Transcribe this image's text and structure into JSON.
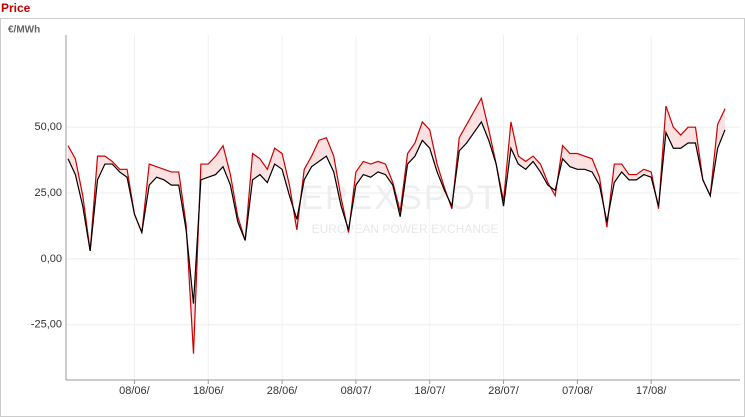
{
  "chart_data": {
    "type": "line",
    "title": "Price",
    "y_label": "€/MWh",
    "watermark": {
      "logo": "EPEXSPOT",
      "tagline": "EUROPEAN POWER EXCHANGE"
    },
    "categories": [
      null,
      null,
      null,
      null,
      null,
      null,
      null,
      null,
      null,
      "08/06/",
      null,
      null,
      null,
      null,
      null,
      null,
      null,
      null,
      null,
      "18/06/",
      null,
      null,
      null,
      null,
      null,
      null,
      null,
      null,
      null,
      "28/06/",
      null,
      null,
      null,
      null,
      null,
      null,
      null,
      null,
      null,
      "08/07/",
      null,
      null,
      null,
      null,
      null,
      null,
      null,
      null,
      null,
      "18/07/",
      null,
      null,
      null,
      null,
      null,
      null,
      null,
      null,
      null,
      "28/07/",
      null,
      null,
      null,
      null,
      null,
      null,
      null,
      null,
      null,
      "07/08/",
      null,
      null,
      null,
      null,
      null,
      null,
      null,
      null,
      null,
      "17/08/",
      null,
      null,
      null,
      null,
      null,
      null,
      null,
      null,
      null,
      null
    ],
    "series": [
      {
        "color": "#cc0000",
        "values": [
          43,
          38,
          24,
          3,
          39,
          39,
          37,
          34,
          34,
          17,
          10,
          36,
          35,
          34,
          33,
          33,
          13,
          -36,
          36,
          36,
          39,
          43,
          32,
          16,
          7,
          40,
          38,
          34,
          42,
          40,
          28,
          11,
          34,
          39,
          45,
          46,
          39,
          23,
          10,
          33,
          37,
          36,
          37,
          36,
          29,
          18,
          40,
          44,
          52,
          49,
          36,
          27,
          19,
          46,
          51,
          56,
          61,
          49,
          36,
          22,
          52,
          39,
          37,
          39,
          36,
          29,
          24,
          43,
          40,
          40,
          39,
          38,
          31,
          12,
          36,
          36,
          32,
          32,
          34,
          33,
          19,
          58,
          50,
          47,
          50,
          50,
          30,
          24,
          51,
          57
        ]
      },
      {
        "color": "#000000",
        "values": [
          38,
          32,
          20,
          3,
          30,
          36,
          36,
          33,
          31,
          17,
          10,
          28,
          31,
          30,
          28,
          28,
          11,
          -17,
          30,
          31,
          32,
          35,
          28,
          14,
          7,
          30,
          32,
          29,
          36,
          34,
          24,
          15,
          30,
          35,
          37,
          39,
          33,
          20,
          11,
          28,
          32,
          31,
          33,
          32,
          28,
          16,
          36,
          39,
          45,
          42,
          33,
          26,
          20,
          41,
          44,
          48,
          52,
          45,
          36,
          20,
          42,
          36,
          34,
          37,
          33,
          28,
          26,
          38,
          35,
          34,
          34,
          33,
          28,
          14,
          29,
          33,
          30,
          30,
          32,
          31,
          20,
          48,
          42,
          42,
          44,
          44,
          30,
          24,
          42,
          49
        ]
      }
    ],
    "fill_between_color": "#fbe1e1",
    "ylim": [
      -46,
      85
    ],
    "yticks": [
      {
        "value": -25,
        "label": "-25,00"
      },
      {
        "value": 0,
        "label": "0,00"
      },
      {
        "value": 25,
        "label": "25,00"
      },
      {
        "value": 50,
        "label": "50,00"
      }
    ],
    "grid": true
  }
}
